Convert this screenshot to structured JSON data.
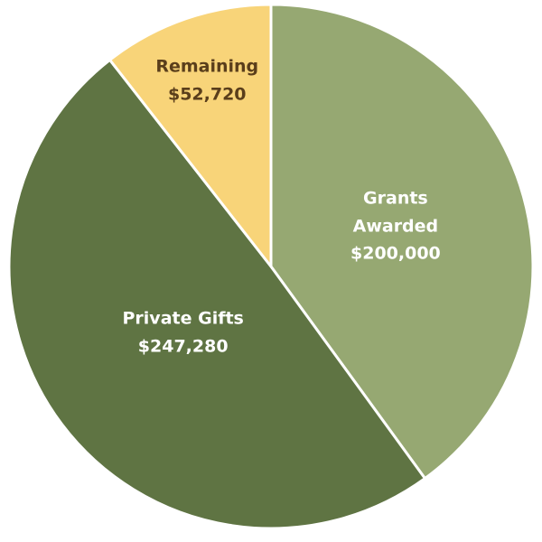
{
  "chart_data": {
    "type": "pie",
    "categories": [
      "Grants Awarded",
      "Private Gifts",
      "Remaining"
    ],
    "values": [
      200000,
      247280,
      52720
    ],
    "value_labels": [
      "$200,000",
      "$247,280",
      "$52,720"
    ],
    "colors": [
      "#96a872",
      "#5f7443",
      "#f8d479"
    ],
    "label_colors": [
      "#ffffff",
      "#ffffff",
      "#5a3e1b"
    ]
  }
}
